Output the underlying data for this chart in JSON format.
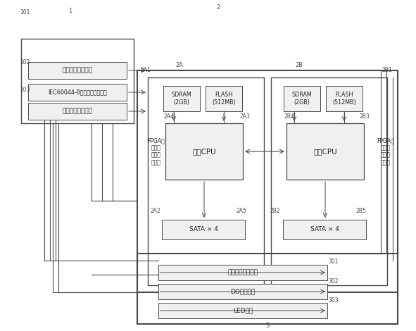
{
  "bg_color": "#ffffff",
  "line_color": "#4a4a4a",
  "box_fill": "#f0f0f0",
  "font_size_small": 6.5,
  "font_size_tiny": 5.5,
  "font_size_label": 6.0,
  "labels": {
    "module1": "光以太网接入电路",
    "module2": "IEC60044-8报文数据接入电路",
    "module3": "时钟信号接入电路",
    "cpu1": "第一CPU",
    "cpu2": "第二CPU",
    "sdram_a": "SDRAM\n(2GB)",
    "flash_a": "FLASH\n(512MB)",
    "sdram_b": "SDRAM\n(2GB)",
    "flash_b": "FLASH\n(512MB)",
    "sata_a": "SATA × 4",
    "sata_b": "SATA × 4",
    "fpga_left": "FPGA现\n场可编\n程逻辑\n门阵列",
    "fpga_right": "FPGA现\n场可编\n程逻辑\n门阵列",
    "eth_ctrl": "以太网控制器电路",
    "do_out": "DO输出电路",
    "led": "LED电路",
    "ref_1": "1",
    "ref_2": "2",
    "ref_2A": "2A",
    "ref_2B": "2B",
    "ref_2A1": "2A1",
    "ref_2B1": "2B1",
    "ref_2A2": "2A2",
    "ref_2A3": "2A3",
    "ref_2A4": "2A4",
    "ref_2A5": "2A5",
    "ref_2B2": "2B2",
    "ref_2B3": "2B3",
    "ref_2B4": "2B4",
    "ref_2B5": "2B5",
    "ref_3": "3",
    "ref_101": "101",
    "ref_102": "102",
    "ref_103": "103",
    "ref_301": "301",
    "ref_302": "302",
    "ref_303": "303"
  }
}
